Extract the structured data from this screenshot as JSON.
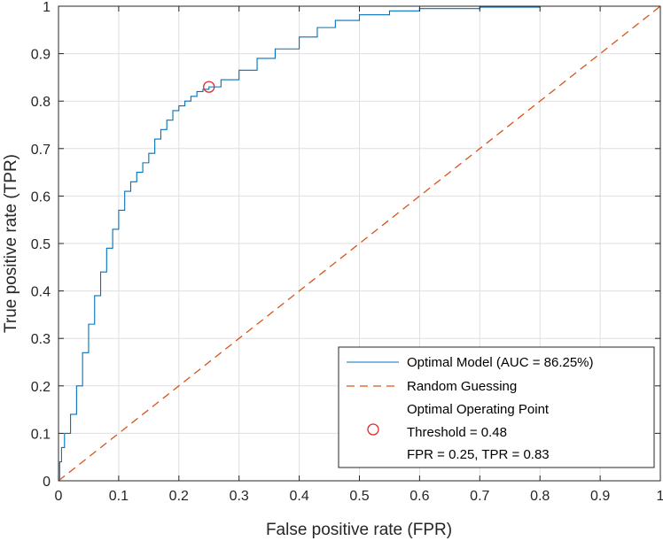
{
  "chart_data": {
    "type": "line",
    "xlabel": "False positive rate (FPR)",
    "ylabel": "True positive rate (TPR)",
    "xlim": [
      0,
      1
    ],
    "ylim": [
      0,
      1
    ],
    "grid": true,
    "legend_position": "bottom-right",
    "x_ticks": [
      "0",
      "0.1",
      "0.2",
      "0.3",
      "0.4",
      "0.5",
      "0.6",
      "0.7",
      "0.8",
      "0.9",
      "1"
    ],
    "y_ticks": [
      "0",
      "0.1",
      "0.2",
      "0.3",
      "0.4",
      "0.5",
      "0.6",
      "0.7",
      "0.8",
      "0.9",
      "1"
    ],
    "series": [
      {
        "name": "Optimal Model (AUC = 86.25%)",
        "color": "#0072BD",
        "style": "solid",
        "x": [
          0,
          0.002,
          0.005,
          0.01,
          0.02,
          0.03,
          0.04,
          0.05,
          0.06,
          0.07,
          0.08,
          0.09,
          0.1,
          0.11,
          0.12,
          0.13,
          0.14,
          0.15,
          0.16,
          0.17,
          0.18,
          0.19,
          0.2,
          0.21,
          0.22,
          0.23,
          0.24,
          0.25,
          0.27,
          0.3,
          0.33,
          0.36,
          0.4,
          0.43,
          0.46,
          0.5,
          0.55,
          0.6,
          0.7,
          0.8,
          0.9,
          1
        ],
        "y": [
          0,
          0.04,
          0.07,
          0.1,
          0.14,
          0.2,
          0.27,
          0.33,
          0.39,
          0.44,
          0.49,
          0.53,
          0.57,
          0.61,
          0.63,
          0.65,
          0.67,
          0.69,
          0.72,
          0.74,
          0.76,
          0.78,
          0.79,
          0.8,
          0.81,
          0.82,
          0.825,
          0.83,
          0.845,
          0.865,
          0.89,
          0.91,
          0.935,
          0.955,
          0.97,
          0.982,
          0.99,
          0.995,
          0.998,
          1,
          1,
          1
        ]
      },
      {
        "name": "Random Guessing",
        "color": "#D95319",
        "style": "dashed",
        "x": [
          0,
          1
        ],
        "y": [
          0,
          1
        ]
      }
    ],
    "point": {
      "name_lines": [
        "Optimal Operating Point",
        "Threshold = 0.48",
        "FPR = 0.25, TPR = 0.83"
      ],
      "x": 0.25,
      "y": 0.83,
      "color": "#E0282E",
      "marker": "circle"
    }
  }
}
